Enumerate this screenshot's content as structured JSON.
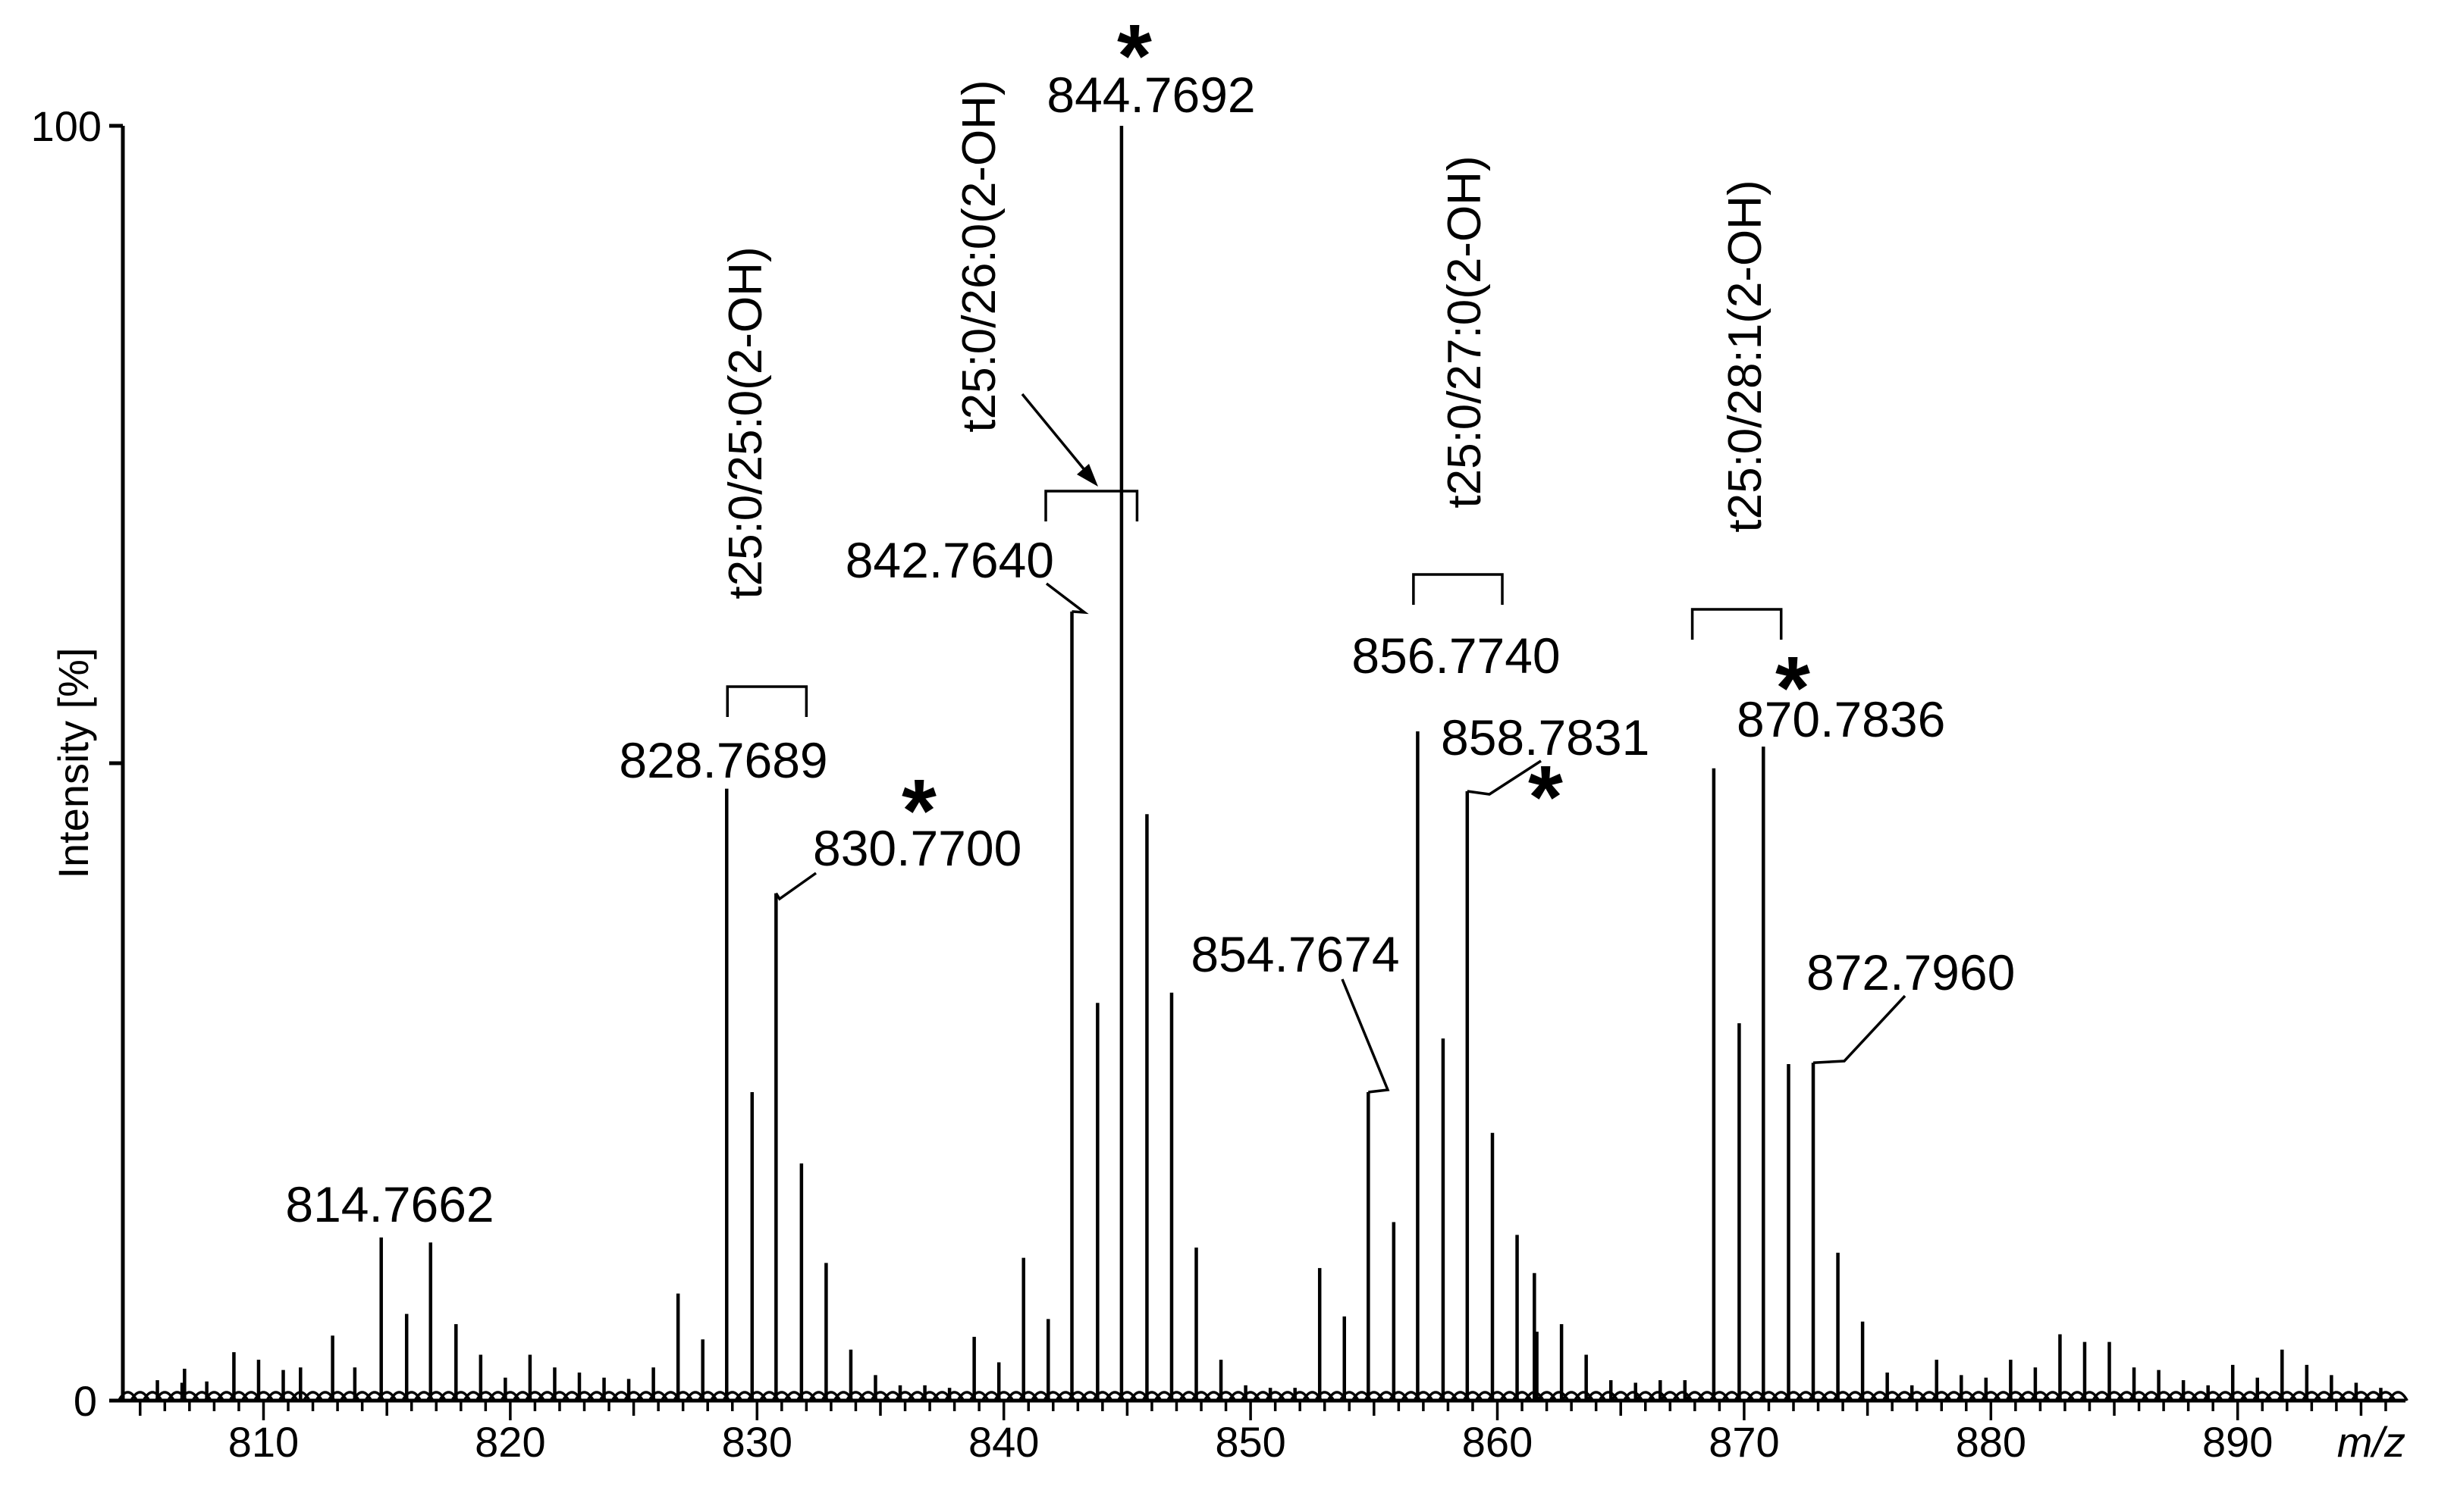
{
  "chart_data": {
    "type": "bar",
    "xlabel": "m/z",
    "ylabel": "Intensity [%]",
    "xlim": [
      804.3,
      896.8
    ],
    "ylim": [
      0,
      100
    ],
    "x_ticks": [
      "810",
      "820",
      "830",
      "840",
      "850",
      "860",
      "870",
      "880",
      "890"
    ],
    "y_ticks": [
      "0",
      "100"
    ],
    "grid": false,
    "peak_labels": [
      {
        "text": "814.7662",
        "mz": 814.77,
        "intensity": 12.8
      },
      {
        "text": "828.7689",
        "mz": 828.77,
        "intensity": 48.0
      },
      {
        "text": "830.7700",
        "mz": 830.77,
        "intensity": 39.8
      },
      {
        "text": "842.7640",
        "mz": 842.76,
        "intensity": 61.9
      },
      {
        "text": "844.7692",
        "mz": 844.77,
        "intensity": 100.0
      },
      {
        "text": "854.7674",
        "mz": 854.77,
        "intensity": 24.2
      },
      {
        "text": "856.7740",
        "mz": 856.77,
        "intensity": 52.5
      },
      {
        "text": "858.7831",
        "mz": 858.78,
        "intensity": 47.8
      },
      {
        "text": "870.7836",
        "mz": 870.78,
        "intensity": 51.3
      },
      {
        "text": "872.7960",
        "mz": 872.8,
        "intensity": 26.5
      }
    ],
    "lipid_labels": [
      {
        "text": "t25:0/25:0(2-OH)",
        "bracket_mz": [
          828.8,
          832.0
        ]
      },
      {
        "text": "t25:0/26:0(2-OH)",
        "bracket_mz": [
          841.7,
          845.4
        ]
      },
      {
        "text": "t25:0/27:0(2-OH)",
        "bracket_mz": [
          856.6,
          860.2
        ]
      },
      {
        "text": "t25:0/28:1(2-OH)",
        "bracket_mz": [
          867.9,
          871.5
        ]
      }
    ],
    "star_marker": "*",
    "peaks": [
      {
        "mz": 805.7,
        "intensity": 1.6
      },
      {
        "mz": 806.7,
        "intensity": 1.4
      },
      {
        "mz": 806.8,
        "intensity": 2.5
      },
      {
        "mz": 807.7,
        "intensity": 1.5
      },
      {
        "mz": 808.8,
        "intensity": 3.8
      },
      {
        "mz": 809.8,
        "intensity": 3.2
      },
      {
        "mz": 810.8,
        "intensity": 2.4
      },
      {
        "mz": 811.5,
        "intensity": 2.6
      },
      {
        "mz": 812.8,
        "intensity": 5.1
      },
      {
        "mz": 813.7,
        "intensity": 2.6
      },
      {
        "mz": 814.77,
        "intensity": 12.8
      },
      {
        "mz": 815.8,
        "intensity": 6.8
      },
      {
        "mz": 816.77,
        "intensity": 12.4
      },
      {
        "mz": 817.8,
        "intensity": 6.0
      },
      {
        "mz": 818.8,
        "intensity": 3.6
      },
      {
        "mz": 819.8,
        "intensity": 1.8
      },
      {
        "mz": 820.8,
        "intensity": 3.6
      },
      {
        "mz": 821.8,
        "intensity": 2.6
      },
      {
        "mz": 822.8,
        "intensity": 2.2
      },
      {
        "mz": 823.8,
        "intensity": 1.8
      },
      {
        "mz": 824.8,
        "intensity": 1.7
      },
      {
        "mz": 825.8,
        "intensity": 2.6
      },
      {
        "mz": 826.8,
        "intensity": 8.4
      },
      {
        "mz": 827.8,
        "intensity": 4.8
      },
      {
        "mz": 828.77,
        "intensity": 48.0
      },
      {
        "mz": 829.8,
        "intensity": 24.2
      },
      {
        "mz": 830.77,
        "intensity": 39.8
      },
      {
        "mz": 831.8,
        "intensity": 18.6
      },
      {
        "mz": 832.8,
        "intensity": 10.8
      },
      {
        "mz": 833.8,
        "intensity": 4.0
      },
      {
        "mz": 834.8,
        "intensity": 2.0
      },
      {
        "mz": 835.8,
        "intensity": 1.2
      },
      {
        "mz": 836.8,
        "intensity": 1.2
      },
      {
        "mz": 837.8,
        "intensity": 1.0
      },
      {
        "mz": 838.8,
        "intensity": 5.0
      },
      {
        "mz": 839.8,
        "intensity": 3.0
      },
      {
        "mz": 840.8,
        "intensity": 11.2
      },
      {
        "mz": 841.8,
        "intensity": 6.4
      },
      {
        "mz": 842.76,
        "intensity": 61.9
      },
      {
        "mz": 843.8,
        "intensity": 31.2
      },
      {
        "mz": 844.77,
        "intensity": 100.0
      },
      {
        "mz": 845.8,
        "intensity": 46.0
      },
      {
        "mz": 846.8,
        "intensity": 32.0
      },
      {
        "mz": 847.8,
        "intensity": 12.0
      },
      {
        "mz": 848.8,
        "intensity": 3.2
      },
      {
        "mz": 849.8,
        "intensity": 1.2
      },
      {
        "mz": 850.8,
        "intensity": 1.0
      },
      {
        "mz": 851.8,
        "intensity": 1.0
      },
      {
        "mz": 852.8,
        "intensity": 10.4
      },
      {
        "mz": 853.8,
        "intensity": 6.6
      },
      {
        "mz": 854.77,
        "intensity": 24.2
      },
      {
        "mz": 855.8,
        "intensity": 14.0
      },
      {
        "mz": 856.77,
        "intensity": 52.5
      },
      {
        "mz": 857.8,
        "intensity": 28.4
      },
      {
        "mz": 858.78,
        "intensity": 47.8
      },
      {
        "mz": 859.8,
        "intensity": 21.0
      },
      {
        "mz": 860.8,
        "intensity": 13.0
      },
      {
        "mz": 861.5,
        "intensity": 10.0
      },
      {
        "mz": 861.6,
        "intensity": 5.4
      },
      {
        "mz": 862.6,
        "intensity": 6.0
      },
      {
        "mz": 863.6,
        "intensity": 3.6
      },
      {
        "mz": 864.6,
        "intensity": 1.6
      },
      {
        "mz": 865.6,
        "intensity": 1.4
      },
      {
        "mz": 866.6,
        "intensity": 1.6
      },
      {
        "mz": 867.6,
        "intensity": 1.6
      },
      {
        "mz": 868.77,
        "intensity": 49.6
      },
      {
        "mz": 869.8,
        "intensity": 29.6
      },
      {
        "mz": 870.78,
        "intensity": 51.3
      },
      {
        "mz": 871.8,
        "intensity": 26.4
      },
      {
        "mz": 872.8,
        "intensity": 26.5
      },
      {
        "mz": 873.8,
        "intensity": 11.6
      },
      {
        "mz": 874.8,
        "intensity": 6.2
      },
      {
        "mz": 875.8,
        "intensity": 2.2
      },
      {
        "mz": 876.8,
        "intensity": 1.2
      },
      {
        "mz": 877.8,
        "intensity": 3.2
      },
      {
        "mz": 878.8,
        "intensity": 2.0
      },
      {
        "mz": 879.8,
        "intensity": 1.8
      },
      {
        "mz": 880.8,
        "intensity": 3.2
      },
      {
        "mz": 881.8,
        "intensity": 2.6
      },
      {
        "mz": 882.8,
        "intensity": 5.2
      },
      {
        "mz": 883.8,
        "intensity": 4.6
      },
      {
        "mz": 884.8,
        "intensity": 4.6
      },
      {
        "mz": 885.8,
        "intensity": 2.6
      },
      {
        "mz": 886.8,
        "intensity": 2.4
      },
      {
        "mz": 887.8,
        "intensity": 1.6
      },
      {
        "mz": 888.8,
        "intensity": 1.2
      },
      {
        "mz": 889.8,
        "intensity": 2.8
      },
      {
        "mz": 890.8,
        "intensity": 1.8
      },
      {
        "mz": 891.8,
        "intensity": 4.0
      },
      {
        "mz": 892.8,
        "intensity": 2.8
      },
      {
        "mz": 893.8,
        "intensity": 2.0
      },
      {
        "mz": 894.8,
        "intensity": 1.4
      },
      {
        "mz": 895.8,
        "intensity": 1.0
      }
    ]
  }
}
